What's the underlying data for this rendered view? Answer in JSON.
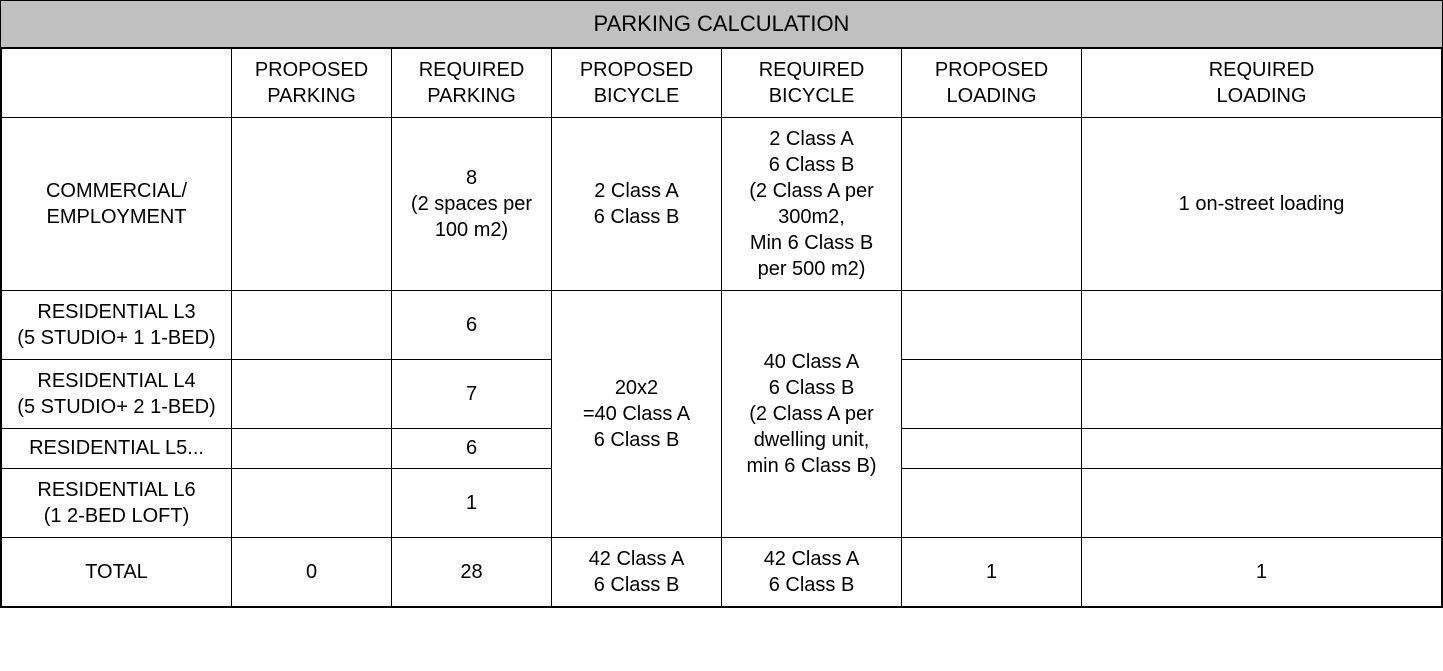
{
  "title": "PARKING CALCULATION",
  "headers": {
    "blank": "",
    "proposed_parking": "PROPOSED\nPARKING",
    "required_parking": "REQUIRED\nPARKING",
    "proposed_bicycle": "PROPOSED\nBICYCLE",
    "required_bicycle": "REQUIRED\nBICYCLE",
    "proposed_loading": "PROPOSED\nLOADING",
    "required_loading": "REQUIRED\nLOADING"
  },
  "rows": {
    "commercial": {
      "label": "COMMERCIAL/\nEMPLOYMENT",
      "pp": "",
      "rp": "8\n(2 spaces per\n100 m2)",
      "pb": "2 Class A\n6 Class B",
      "rb": "2 Class A\n6 Class B\n(2 Class A per\n300m2,\nMin 6 Class B\nper 500 m2)",
      "pl": "",
      "rl": "1 on-street loading"
    },
    "res_l3": {
      "label": "RESIDENTIAL L3\n(5 STUDIO+ 1 1-BED)",
      "pp": "",
      "rp": "6",
      "pl": "",
      "rl": ""
    },
    "res_l4": {
      "label": "RESIDENTIAL L4\n(5 STUDIO+ 2 1-BED)",
      "pp": "",
      "rp": "7",
      "pl": "",
      "rl": ""
    },
    "res_l5": {
      "label": "RESIDENTIAL L5...",
      "pp": "",
      "rp": "6",
      "pl": "",
      "rl": ""
    },
    "res_l6": {
      "label": "RESIDENTIAL L6\n(1 2-BED LOFT)",
      "pp": "",
      "rp": "1",
      "pl": "",
      "rl": ""
    },
    "residential_merged": {
      "pb": "20x2\n=40 Class A\n6 Class B",
      "rb": "40 Class A\n6 Class B\n(2 Class A per\ndwelling unit,\nmin 6 Class B)"
    },
    "total": {
      "label": "TOTAL",
      "pp": "0",
      "rp": "28",
      "pb": "42 Class A\n6 Class B",
      "rb": "42 Class A\n6 Class B",
      "pl": "1",
      "rl": "1"
    }
  },
  "styling": {
    "title_bg": "#c0c0c0",
    "border_color": "#000000",
    "font_size": 20,
    "title_font_size": 22,
    "background": "#ffffff",
    "text_color": "#000000"
  }
}
